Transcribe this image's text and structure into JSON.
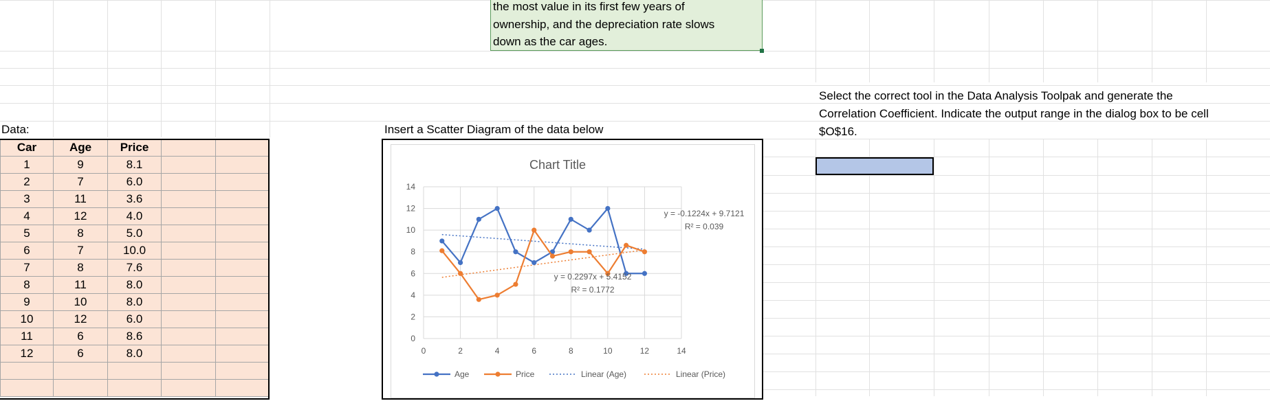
{
  "note": {
    "lines": [
      "the most value in its first few years of",
      "ownership, and the depreciation rate slows",
      "down as the car ages."
    ]
  },
  "data_label": "Data:",
  "chart_instruction": "Insert a Scatter Diagram of the data below",
  "instructions": {
    "lines": [
      "Select the correct tool in the Data Analysis Toolpak and generate the",
      "Correlation Coefficient.  Indicate the output range in the dialog box to be cell",
      "$O$16."
    ]
  },
  "table": {
    "headers": [
      "Car",
      "Age",
      "Price"
    ],
    "rows": [
      [
        "1",
        "9",
        "8.1"
      ],
      [
        "2",
        "7",
        "6.0"
      ],
      [
        "3",
        "11",
        "3.6"
      ],
      [
        "4",
        "12",
        "4.0"
      ],
      [
        "5",
        "8",
        "5.0"
      ],
      [
        "6",
        "7",
        "10.0"
      ],
      [
        "7",
        "8",
        "7.6"
      ],
      [
        "8",
        "11",
        "8.0"
      ],
      [
        "9",
        "10",
        "8.0"
      ],
      [
        "10",
        "12",
        "6.0"
      ],
      [
        "11",
        "6",
        "8.6"
      ],
      [
        "12",
        "6",
        "8.0"
      ]
    ]
  },
  "colors": {
    "age": "#4472c4",
    "price": "#ed7d31",
    "cell_fill": "#fce4d6",
    "note_fill": "#e2efda",
    "answer_fill": "#b4c6e7"
  },
  "chart_data": {
    "type": "scatter",
    "title": "Chart Title",
    "xlim": [
      0,
      14
    ],
    "ylim": [
      0,
      14
    ],
    "xticks": [
      0,
      2,
      4,
      6,
      8,
      10,
      12,
      14
    ],
    "yticks": [
      0,
      2,
      4,
      6,
      8,
      10,
      12,
      14
    ],
    "grid": true,
    "legend_position": "bottom",
    "series": [
      {
        "name": "Age",
        "x": [
          1,
          2,
          3,
          4,
          5,
          6,
          7,
          8,
          9,
          10,
          11,
          12
        ],
        "y": [
          9,
          7,
          11,
          12,
          8,
          7,
          8,
          11,
          10,
          12,
          6,
          6
        ],
        "color": "#4472c4"
      },
      {
        "name": "Price",
        "x": [
          1,
          2,
          3,
          4,
          5,
          6,
          7,
          8,
          9,
          10,
          11,
          12
        ],
        "y": [
          8.1,
          6.0,
          3.6,
          4.0,
          5.0,
          10.0,
          7.6,
          8.0,
          8.0,
          6.0,
          8.6,
          8.0
        ],
        "color": "#ed7d31"
      }
    ],
    "trendlines": [
      {
        "name": "Linear (Age)",
        "slope": -0.1224,
        "intercept": 9.7121,
        "equation": "y = -0.1224x + 9.7121",
        "r2": "R² = 0.039",
        "color": "#4472c4"
      },
      {
        "name": "Linear (Price)",
        "slope": 0.2297,
        "intercept": 5.4152,
        "equation": "y = 0.2297x + 5.4152",
        "r2": "R² = 0.1772",
        "color": "#ed7d31"
      }
    ]
  }
}
